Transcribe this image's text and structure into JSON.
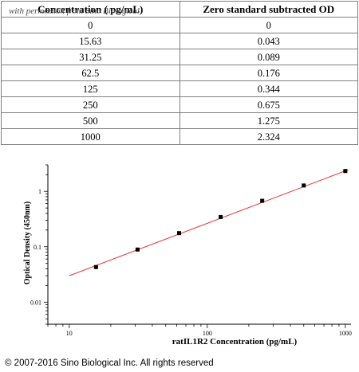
{
  "watermark": "with permission from Sino Biological",
  "table": {
    "headers": [
      "Concentration ( pg/mL)",
      "Zero standard subtracted OD"
    ],
    "rows": [
      [
        "0",
        "0"
      ],
      [
        "15.63",
        "0.043"
      ],
      [
        "31.25",
        "0.089"
      ],
      [
        "62.5",
        "0.176"
      ],
      [
        "125",
        "0.344"
      ],
      [
        "250",
        "0.675"
      ],
      [
        "500",
        "1.275"
      ],
      [
        "1000",
        "2.324"
      ]
    ]
  },
  "chart_data": {
    "type": "scatter",
    "xlabel": "ratIL1R2 Concentration (pg/mL)",
    "ylabel": "Optical Density (450nm)",
    "x_scale": "log",
    "y_scale": "log",
    "xlim": [
      7,
      1100
    ],
    "ylim": [
      0.004,
      3
    ],
    "x_ticks": [
      "10",
      "100",
      "1000"
    ],
    "y_ticks": [
      "0.01",
      "0.1",
      "1"
    ],
    "x": [
      15.63,
      31.25,
      62.5,
      125,
      250,
      500,
      1000
    ],
    "y": [
      0.043,
      0.089,
      0.176,
      0.344,
      0.675,
      1.275,
      2.324
    ],
    "fit_line": {
      "x": [
        10,
        1050
      ],
      "y": [
        0.03,
        2.45
      ]
    },
    "colors": {
      "points": "#000000",
      "fit_line": "#e8373b"
    },
    "grid": false
  },
  "footer": "© 2007-2016 Sino Biological Inc. All rights reserved"
}
